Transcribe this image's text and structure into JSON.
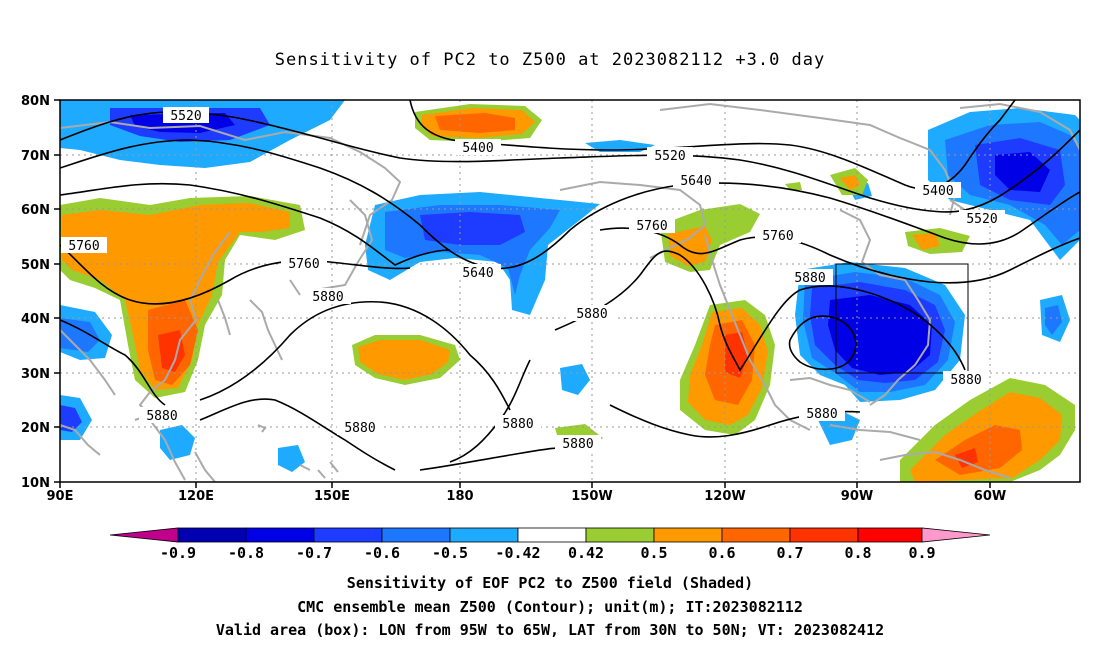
{
  "title": "Sensitivity of PC2 to Z500 at 2023082112 +3.0 day",
  "captions": {
    "line1": "Sensitivity of EOF PC2 to Z500 field (Shaded)",
    "line2": "CMC ensemble mean Z500 (Contour); unit(m); IT:2023082112",
    "line3": "Valid area (box): LON from 95W to 65W, LAT from 30N to 50N; VT: 2023082412"
  },
  "axes": {
    "lon_labels": [
      "90E",
      "120E",
      "150E",
      "180",
      "150W",
      "120W",
      "90W",
      "60W"
    ],
    "lat_labels": [
      "80N",
      "70N",
      "60N",
      "50N",
      "40N",
      "30N",
      "20N",
      "10N"
    ]
  },
  "colorbar": {
    "labels": [
      "-0.9",
      "-0.8",
      "-0.7",
      "-0.6",
      "-0.5",
      "-0.42",
      "0.42",
      "0.5",
      "0.6",
      "0.7",
      "0.8",
      "0.9"
    ],
    "colors": [
      "#c0008a",
      "#0000b0",
      "#0000e6",
      "#1e3cff",
      "#1e78ff",
      "#1eaaff",
      "#00c8ff",
      "#ffffff",
      "#9acd32",
      "#ff9900",
      "#ff6600",
      "#ff3300",
      "#ff0000",
      "#ff99cc"
    ]
  },
  "contour_labels": [
    "5520",
    "5400",
    "5520",
    "5640",
    "5400",
    "5520",
    "5760",
    "5760",
    "5760",
    "5640",
    "5760",
    "5880",
    "5880",
    "5880",
    "5880",
    "5880",
    "5880",
    "5880",
    "5880",
    "5880"
  ],
  "colors": {
    "coast": "#aaaaaa",
    "grid": "#999999",
    "contour": "#000000",
    "box": "#000000"
  }
}
